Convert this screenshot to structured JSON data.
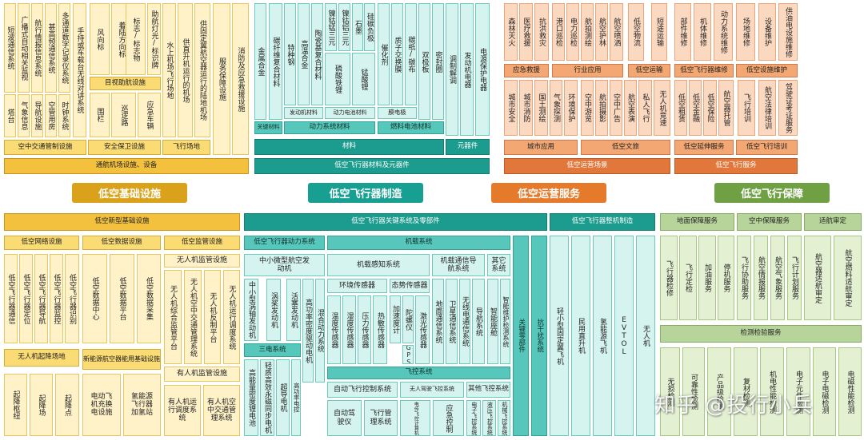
{
  "headers": {
    "infra": "低空基础设施",
    "aircraft": "低空飞行器制造",
    "ops": "低空运营服务",
    "support": "低空飞行保障"
  },
  "upper_infra": {
    "leaves": [
      "短波通信系统",
      "广播式自动相关监视",
      "航行情报信息系统",
      "甚高频通信系统",
      "多通道数字记录仪系统",
      "手持或车载台无线对讲系统",
      "风向标",
      "着陆方向标",
      "标志/标志物",
      "助航灯光/标识牌",
      "水上机场飞行场地",
      "供直升机运行的机场",
      "供固定翼航空器运行的陆地机场",
      "服务保障设施",
      "消防及应急救援设施",
      "塔台",
      "气象信息",
      "导航设施",
      "空管用房",
      "时钟系统",
      "围栏",
      "巡逻路",
      "应急车辆"
    ],
    "sub": [
      "目视助航设施"
    ],
    "cats": [
      "空中交通管制设施",
      "安全保卫设施",
      "飞行场地"
    ],
    "bar": "通航机场设施、设备"
  },
  "upper_aircraft": {
    "leaves": [
      "金属合金",
      "碳纤维复合材料",
      "特种钢",
      "高温合金",
      "陶瓷基复合材料",
      "镍钴锰三元",
      "镍钴铝三元",
      "石墨",
      "硅碳负极",
      "磷酸铁锂",
      "锰酸锂",
      "催化剂",
      "质子交换膜",
      "碳纸/碳布",
      "双极板",
      "密封圈",
      "调制解调",
      "发动机电器",
      "电源保护电器"
    ],
    "cat_small": [
      "发动机材料",
      "动力电池材料",
      "膜电极"
    ],
    "cats": [
      "关键材料",
      "动力系统材料",
      "燃料电池材料"
    ],
    "bar1": [
      "材料",
      "元器件"
    ],
    "bar": "低空飞行器材料及元器件"
  },
  "upper_ops": {
    "leaves": [
      "森林灭火",
      "医疗救援",
      "抗洪救灾",
      "港口巡检",
      "电力巡检",
      "航拍测绘",
      "航空护林",
      "航空喷洒",
      "低空物流",
      "短途运输",
      "城市安全",
      "城市消防",
      "国土测绘",
      "气象探测",
      "环境保护",
      "空中游览",
      "航拍摄影",
      "空中广告",
      "航空表演",
      "私人飞行",
      "无人机竞速"
    ],
    "cats1": [
      "应急救援",
      "行业应用",
      "低空运输"
    ],
    "cats2": [
      "城市应用",
      "低空文旅"
    ],
    "bar": "低空运营场景"
  },
  "upper_support": {
    "leaves": [
      "部件维修",
      "机体维修",
      "动力系统维修",
      "场地维修",
      "设备维护",
      "供油电设施维修",
      "低空租赁",
      "低空金融",
      "低空保险",
      "航空器托管",
      "飞行培训",
      "航空法律培训",
      "驾驶证考证服务"
    ],
    "cats1": [
      "低空飞行器维修",
      "低空设施维护"
    ],
    "cats2": [
      "低空延伸服务",
      "低空飞行培训"
    ],
    "bar": "低空飞行服务"
  },
  "lower_infra": {
    "bar": "低空新型基础设施",
    "cats": [
      "低空网络设施",
      "低空数据设施",
      "低空监管设施"
    ],
    "sub": "无人机监管设施",
    "leaves_net": [
      "低空飞行器通信",
      "低空飞行器定位",
      "低空飞行器导航",
      "低空飞行器监控",
      "低空飞行器识别"
    ],
    "leaves_data": [
      "低空数据中心",
      "低空数据平台",
      "低空数据采集"
    ],
    "leaves_reg": [
      "无人机综合监管平台",
      "无人机空中交通管理系统",
      "无人机反制平台",
      "无人机运行调度系统"
    ],
    "cats2": [
      "无人机起降场地",
      "新能源航空器能用基础设施"
    ],
    "sub2": "有人机监管设施",
    "leaves2": [
      "起降枢纽",
      "起降场",
      "起降点",
      "电动飞机充换电设施",
      "氢能源飞行器加氢站",
      "有人机运行调度系统",
      "有人机空中交通管理系统"
    ]
  },
  "lower_aircraft": {
    "bar1": "低空飞行器关键系统及零部件",
    "bar2": "低空飞行器整机制造",
    "cat1": "低空飞行器动力系统",
    "cat2": "机载系统",
    "sys1": "中小微型航空发动机",
    "sys2": "机载感知系统",
    "sys3": "机载通信导航系统",
    "sys4": "其它系统",
    "key_parts": "关键零部件",
    "anti": "抗干扰系统",
    "leaves1": [
      "中小型涡轴发动机",
      "涡桨发动机",
      "活塞发动机",
      "高功率密度驱动电机",
      "混合动力系统"
    ],
    "sub_power": "三电系统",
    "leaves2": [
      "高能量密度锂电池",
      "轻质高效永磁同步电机",
      "超导电机",
      "高功率电控"
    ],
    "sub_env": "环境传感器",
    "sub_state": "态势传感器",
    "leaves3": [
      "温度传感器",
      "湿度传感器",
      "压力传感器",
      "热敏传感器",
      "加速度计",
      "陀螺仪",
      "GPS",
      "激光传感器",
      "地面通信系统",
      "卫星通信系统",
      "无线电通信系统",
      "导航系统",
      "智能座舱",
      "智能维护检测系统"
    ],
    "fc_bar": "飞控系统",
    "fc_cats": [
      "自动飞行控制系统",
      "无人驾驶飞控系统",
      "其他飞控系统"
    ],
    "fc_leaves": [
      "自动驾驶仪",
      "飞行管理系统",
      "电传飞控计算机",
      "应急控制",
      "电子飞控系统",
      "液压飞控系统",
      "机械飞控系统"
    ],
    "whole": [
      "轻小型固定翼飞机",
      "民用直升机",
      "氢能源飞机",
      "EVTOL",
      "无人机"
    ]
  },
  "lower_support": {
    "cats": [
      "地面保障服务",
      "空中保障服务",
      "适航审定"
    ],
    "leaves1": [
      "飞行器检修",
      "飞行定检",
      "加油服务",
      "停机服务",
      "飞行协助服务",
      "航空情报服务",
      "航空气象服务",
      "飞行计划服务"
    ],
    "leaves2": [
      "航空器适航审定",
      "航空燃料适航审定"
    ],
    "cat2": "检测检验服务",
    "leaves3": [
      "无损检测",
      "可靠性检测",
      "产品级检测",
      "复材检测",
      "机电性能检测",
      "电子元件检测",
      "电子电磁检测",
      "电磁性能检测"
    ]
  },
  "watermark": "知乎 @投行小兵"
}
